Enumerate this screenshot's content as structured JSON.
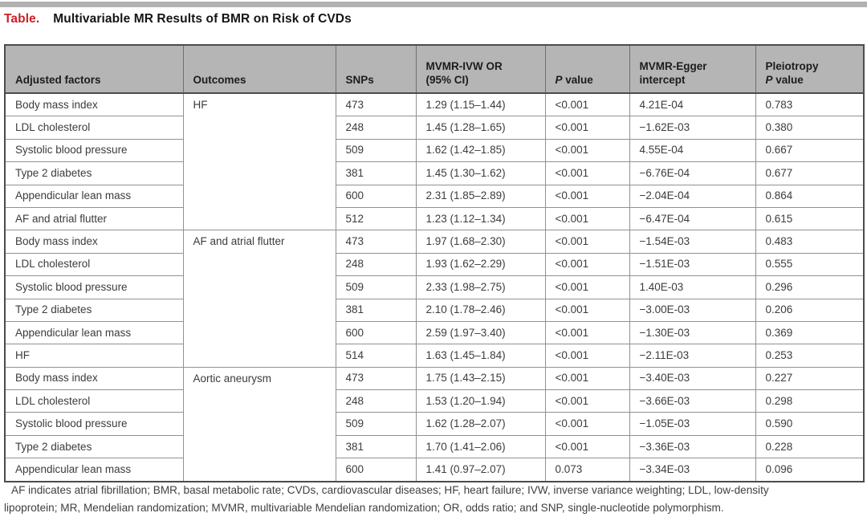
{
  "title": {
    "label": "Table.",
    "text": "Multivariable MR Results of BMR on Risk of CVDs"
  },
  "colors": {
    "accent_red": "#cd2027",
    "header_bg": "#b5b5b5",
    "top_bar_gray": "#b1b1b1",
    "border_dark": "#4c4c4c",
    "border_light": "#919191"
  },
  "table": {
    "header": {
      "adjusted_factors": "Adjusted factors",
      "outcomes": "Outcomes",
      "snps": "SNPs",
      "mvmr_ivw_or_line1": "MVMR-IVW OR",
      "mvmr_ivw_or_line2": "(95% CI)",
      "p_value_italic": "P",
      "p_value_rest": " value",
      "mvmr_egger_line1": "MVMR-Egger",
      "mvmr_egger_line2": "intercept",
      "pleiotropy_line1": "Pleiotropy",
      "pleiotropy_p_italic": "P",
      "pleiotropy_p_rest": " value"
    },
    "groups": [
      {
        "outcome": "HF",
        "rows": [
          {
            "factor": "Body mass index",
            "snps": "473",
            "or_ci": "1.29 (1.15–1.44)",
            "p_value": "<0.001",
            "egger_intercept": "4.21E-04",
            "pleiotropy_p": "0.783"
          },
          {
            "factor": "LDL cholesterol",
            "snps": "248",
            "or_ci": "1.45 (1.28–1.65)",
            "p_value": "<0.001",
            "egger_intercept": "−1.62E-03",
            "pleiotropy_p": "0.380"
          },
          {
            "factor": "Systolic blood pressure",
            "snps": "509",
            "or_ci": "1.62 (1.42–1.85)",
            "p_value": "<0.001",
            "egger_intercept": "4.55E-04",
            "pleiotropy_p": "0.667"
          },
          {
            "factor": "Type 2 diabetes",
            "snps": "381",
            "or_ci": "1.45 (1.30–1.62)",
            "p_value": "<0.001",
            "egger_intercept": "−6.76E-04",
            "pleiotropy_p": "0.677"
          },
          {
            "factor": "Appendicular lean mass",
            "snps": "600",
            "or_ci": "2.31 (1.85–2.89)",
            "p_value": "<0.001",
            "egger_intercept": "−2.04E-04",
            "pleiotropy_p": "0.864"
          },
          {
            "factor": "AF and atrial flutter",
            "snps": "512",
            "or_ci": "1.23 (1.12–1.34)",
            "p_value": "<0.001",
            "egger_intercept": "−6.47E-04",
            "pleiotropy_p": "0.615"
          }
        ]
      },
      {
        "outcome": "AF and atrial flutter",
        "rows": [
          {
            "factor": "Body mass index",
            "snps": "473",
            "or_ci": "1.97 (1.68–2.30)",
            "p_value": "<0.001",
            "egger_intercept": "−1.54E-03",
            "pleiotropy_p": "0.483"
          },
          {
            "factor": "LDL cholesterol",
            "snps": "248",
            "or_ci": "1.93 (1.62–2.29)",
            "p_value": "<0.001",
            "egger_intercept": "−1.51E-03",
            "pleiotropy_p": "0.555"
          },
          {
            "factor": "Systolic blood pressure",
            "snps": "509",
            "or_ci": "2.33 (1.98–2.75)",
            "p_value": "<0.001",
            "egger_intercept": "1.40E-03",
            "pleiotropy_p": "0.296"
          },
          {
            "factor": "Type 2 diabetes",
            "snps": "381",
            "or_ci": "2.10 (1.78–2.46)",
            "p_value": "<0.001",
            "egger_intercept": "−3.00E-03",
            "pleiotropy_p": "0.206"
          },
          {
            "factor": "Appendicular lean mass",
            "snps": "600",
            "or_ci": "2.59 (1.97–3.40)",
            "p_value": "<0.001",
            "egger_intercept": "−1.30E-03",
            "pleiotropy_p": "0.369"
          },
          {
            "factor": "HF",
            "snps": "514",
            "or_ci": "1.63 (1.45–1.84)",
            "p_value": "<0.001",
            "egger_intercept": "−2.11E-03",
            "pleiotropy_p": "0.253"
          }
        ]
      },
      {
        "outcome": "Aortic aneurysm",
        "rows": [
          {
            "factor": "Body mass index",
            "snps": "473",
            "or_ci": "1.75 (1.43–2.15)",
            "p_value": "<0.001",
            "egger_intercept": "−3.40E-03",
            "pleiotropy_p": "0.227"
          },
          {
            "factor": "LDL cholesterol",
            "snps": "248",
            "or_ci": "1.53 (1.20–1.94)",
            "p_value": "<0.001",
            "egger_intercept": "−3.66E-03",
            "pleiotropy_p": "0.298"
          },
          {
            "factor": "Systolic blood pressure",
            "snps": "509",
            "or_ci": "1.62 (1.28–2.07)",
            "p_value": "<0.001",
            "egger_intercept": "−1.05E-03",
            "pleiotropy_p": "0.590"
          },
          {
            "factor": "Type 2 diabetes",
            "snps": "381",
            "or_ci": "1.70 (1.41–2.06)",
            "p_value": "<0.001",
            "egger_intercept": "−3.36E-03",
            "pleiotropy_p": "0.228"
          },
          {
            "factor": "Appendicular lean mass",
            "snps": "600",
            "or_ci": "1.41 (0.97–2.07)",
            "p_value": "0.073",
            "egger_intercept": "−3.34E-03",
            "pleiotropy_p": "0.096"
          }
        ]
      }
    ]
  },
  "footnote": {
    "line1": "AF indicates atrial fibrillation; BMR, basal metabolic rate; CVDs, cardiovascular diseases; HF, heart failure; IVW, inverse variance weighting; LDL, low-density",
    "line2": "lipoprotein; MR, Mendelian randomization; MVMR, multivariable Mendelian randomization; OR, odds ratio; and SNP, single-nucleotide polymorphism."
  }
}
